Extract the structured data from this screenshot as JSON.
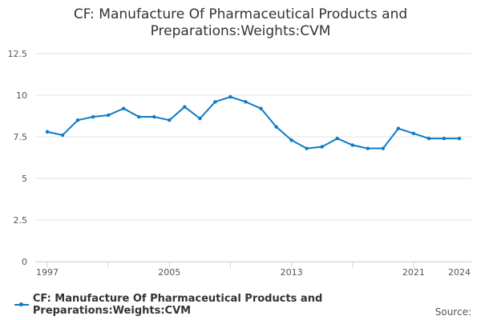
{
  "chart_data": {
    "type": "line",
    "title": "CF: Manufacture Of Pharmaceutical Products and Preparations:Weights:CVM",
    "xlabel": "",
    "ylabel": "",
    "x": [
      1997,
      1998,
      1999,
      2000,
      2001,
      2002,
      2003,
      2004,
      2005,
      2006,
      2007,
      2008,
      2009,
      2010,
      2011,
      2012,
      2013,
      2014,
      2015,
      2016,
      2017,
      2018,
      2019,
      2020,
      2021,
      2022,
      2023,
      2024
    ],
    "series": [
      {
        "name": "CF: Manufacture Of Pharmaceutical Products and Preparations:Weights:CVM",
        "values": [
          7.8,
          7.6,
          8.5,
          8.7,
          8.8,
          9.2,
          8.7,
          8.7,
          8.5,
          9.3,
          8.6,
          9.6,
          9.9,
          9.6,
          9.2,
          8.1,
          7.3,
          6.8,
          6.9,
          7.4,
          7.0,
          6.8,
          6.8,
          8.0,
          7.7,
          7.4,
          7.4,
          7.4
        ],
        "color": "#0a7bc4"
      }
    ],
    "xticks": [
      "1997",
      "2005",
      "2013",
      "2021",
      "2024"
    ],
    "yticks": [
      "0",
      "2.5",
      "5",
      "7.5",
      "10",
      "12.5"
    ],
    "ylim": [
      0,
      12.5
    ],
    "grid": true,
    "legend": "bottom-left"
  },
  "source_label": "Source:"
}
